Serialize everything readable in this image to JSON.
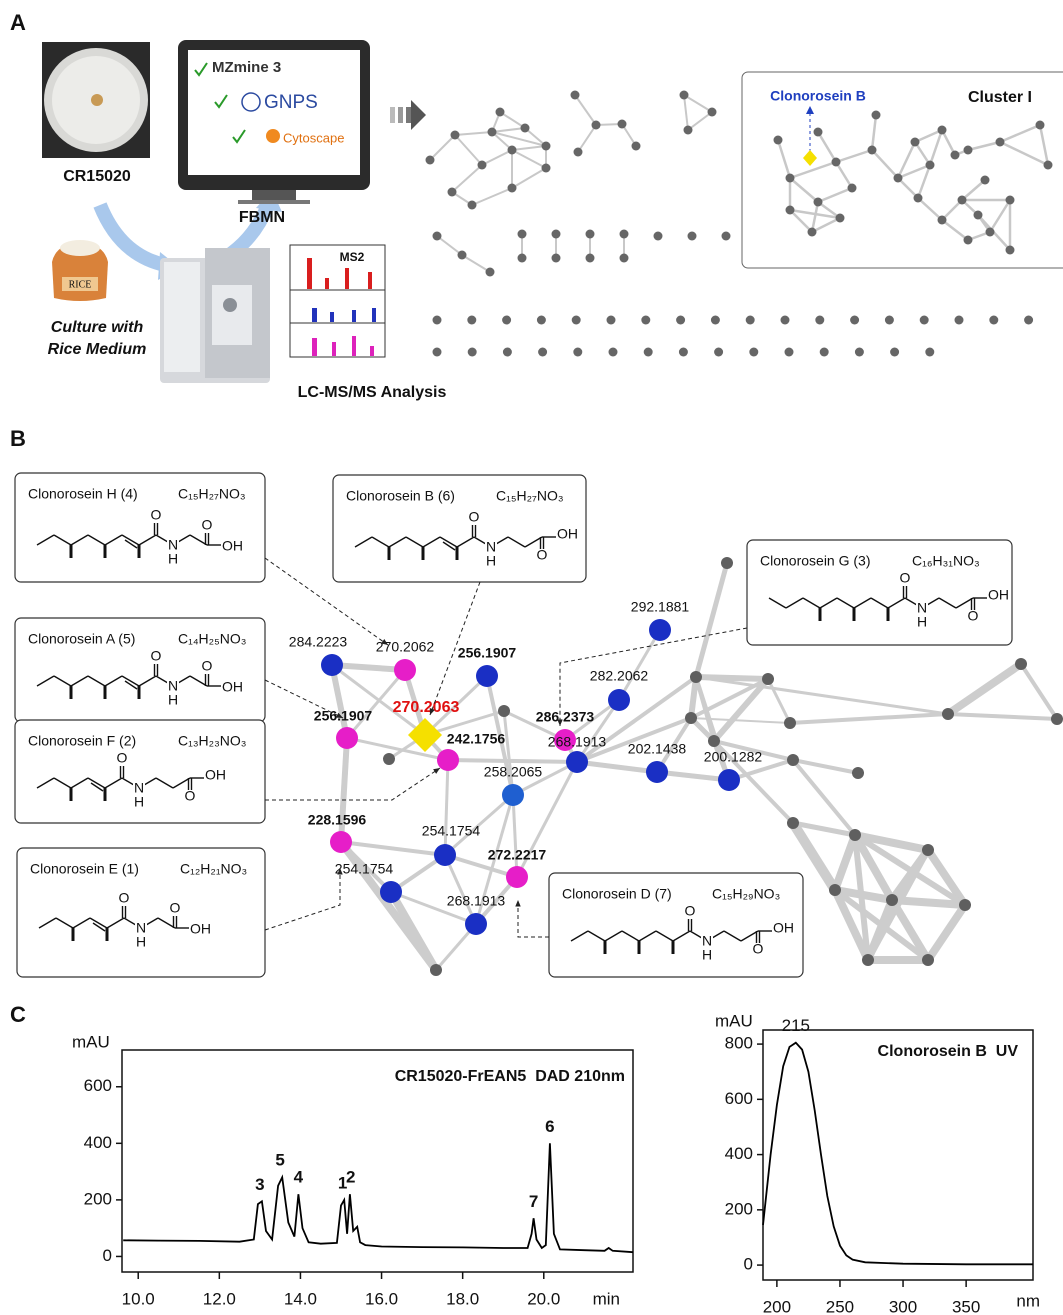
{
  "panel_labels": [
    "A",
    "B",
    "C"
  ],
  "panel_a": {
    "strain": "CR15020",
    "culture": [
      "Culture with",
      "Rice Medium"
    ],
    "sack_label": "RICE",
    "software": [
      "MZmine 3",
      "GNPS",
      "Cytoscape"
    ],
    "workflow": "FBMN",
    "ms2": "MS2",
    "analysis": "LC-MS/MS Analysis",
    "cluster_title": "Cluster I",
    "highlight": "Clonorosein B"
  },
  "panel_b": {
    "compounds": [
      {
        "name": "Clonorosein H (4)",
        "formula": "C₁₅H₂₇NO₃",
        "atoms": [
          "O",
          "N",
          "H",
          "O",
          "OH"
        ]
      },
      {
        "name": "Clonorosein A (5)",
        "formula": "C₁₄H₂₅NO₃",
        "atoms": [
          "O",
          "N",
          "H",
          "O",
          "OH"
        ]
      },
      {
        "name": "Clonorosein F (2)",
        "formula": "C₁₃H₂₃NO₃",
        "atoms": [
          "O",
          "N",
          "H",
          "OH",
          "O"
        ]
      },
      {
        "name": "Clonorosein E (1)",
        "formula": "C₁₂H₂₁NO₃",
        "atoms": [
          "O",
          "N",
          "H",
          "O",
          "OH"
        ]
      },
      {
        "name": "Clonorosein B (6)",
        "formula": "C₁₅H₂₇NO₃",
        "atoms": [
          "O",
          "N",
          "H",
          "OH",
          "O"
        ]
      },
      {
        "name": "Clonorosein G (3)",
        "formula": "C₁₆H₃₁NO₃",
        "atoms": [
          "O",
          "N",
          "H",
          "OH",
          "O"
        ]
      },
      {
        "name": "Clonorosein D (7)",
        "formula": "C₁₅H₂₉NO₃",
        "atoms": [
          "O",
          "N",
          "H",
          "OH",
          "O"
        ]
      }
    ],
    "nodes": [
      {
        "label": "284.2223"
      },
      {
        "label": "270.2062"
      },
      {
        "label": "256.1907"
      },
      {
        "label": "270.2063"
      },
      {
        "label": "256.1907"
      },
      {
        "label": "242.1756"
      },
      {
        "label": "286.2373"
      },
      {
        "label": "282.2062"
      },
      {
        "label": "292.1881"
      },
      {
        "label": "268.1913"
      },
      {
        "label": "202.1438"
      },
      {
        "label": "200.1282"
      },
      {
        "label": "258.2065"
      },
      {
        "label": "228.1596"
      },
      {
        "label": "254.1754"
      },
      {
        "label": "254.1754"
      },
      {
        "label": "272.2217"
      },
      {
        "label": "268.1913"
      }
    ]
  },
  "chart_data": [
    {
      "type": "line",
      "title": "CR15020-FrEAN5  DAD 210nm",
      "y_label": "mAU",
      "x_label": "min",
      "color": "#000000",
      "x": [
        9.63,
        10.5,
        11.5,
        12.5,
        12.85,
        12.95,
        13.05,
        13.15,
        13.3,
        13.45,
        13.55,
        13.7,
        13.85,
        13.95,
        14.05,
        14.2,
        14.5,
        14.9,
        15.0,
        15.08,
        15.15,
        15.22,
        15.3,
        15.4,
        15.47,
        15.6,
        16.0,
        17.0,
        18.0,
        19.0,
        19.6,
        19.7,
        19.75,
        19.82,
        19.95,
        20.05,
        20.15,
        20.25,
        20.4,
        21.0,
        21.5,
        21.6,
        21.7,
        22.2
      ],
      "values": [
        57,
        56,
        55,
        52,
        60,
        185,
        195,
        90,
        60,
        250,
        280,
        120,
        70,
        220,
        100,
        50,
        45,
        48,
        180,
        200,
        80,
        220,
        90,
        105,
        50,
        40,
        35,
        33,
        32,
        30,
        30,
        80,
        135,
        60,
        30,
        40,
        400,
        80,
        25,
        22,
        20,
        30,
        20,
        15
      ],
      "xlim": [
        9.6,
        22.2
      ],
      "ylim": [
        -55,
        730
      ],
      "xticks": [
        {
          "value": 10,
          "label": "10.0"
        },
        {
          "value": 12,
          "label": "12.0"
        },
        {
          "value": 14,
          "label": "14.0"
        },
        {
          "value": 16,
          "label": "16.0"
        },
        {
          "value": 18,
          "label": "18.0"
        },
        {
          "value": 20,
          "label": "20.0"
        }
      ],
      "yticks": [
        0,
        200,
        400,
        600
      ],
      "annotations": [
        {
          "label": "3",
          "x": 13.0,
          "y": 195
        },
        {
          "label": "5",
          "x": 13.5,
          "y": 280
        },
        {
          "label": "4",
          "x": 13.95,
          "y": 220
        },
        {
          "label": "1",
          "x": 15.04,
          "y": 200
        },
        {
          "label": "2",
          "x": 15.24,
          "y": 220
        },
        {
          "label": "7",
          "x": 19.75,
          "y": 135
        },
        {
          "label": "6",
          "x": 20.15,
          "y": 400
        }
      ]
    },
    {
      "type": "line",
      "title": "Clonorosein B  UV",
      "y_label": "mAU",
      "x_label": "nm",
      "color": "#000000",
      "x": [
        189,
        195,
        200,
        205,
        210,
        215,
        220,
        225,
        230,
        235,
        240,
        245,
        250,
        255,
        260,
        270,
        300,
        350,
        403
      ],
      "values": [
        145,
        400,
        580,
        720,
        790,
        805,
        780,
        700,
        560,
        400,
        250,
        140,
        70,
        35,
        20,
        10,
        5,
        3,
        3
      ],
      "xlim": [
        189,
        403
      ],
      "ylim": [
        -54,
        851
      ],
      "xticks": [
        200,
        250,
        300,
        350
      ],
      "yticks": [
        0,
        200,
        400,
        600,
        800
      ],
      "annotations": [
        {
          "label": "215",
          "x": 215,
          "y": 805
        }
      ]
    }
  ]
}
